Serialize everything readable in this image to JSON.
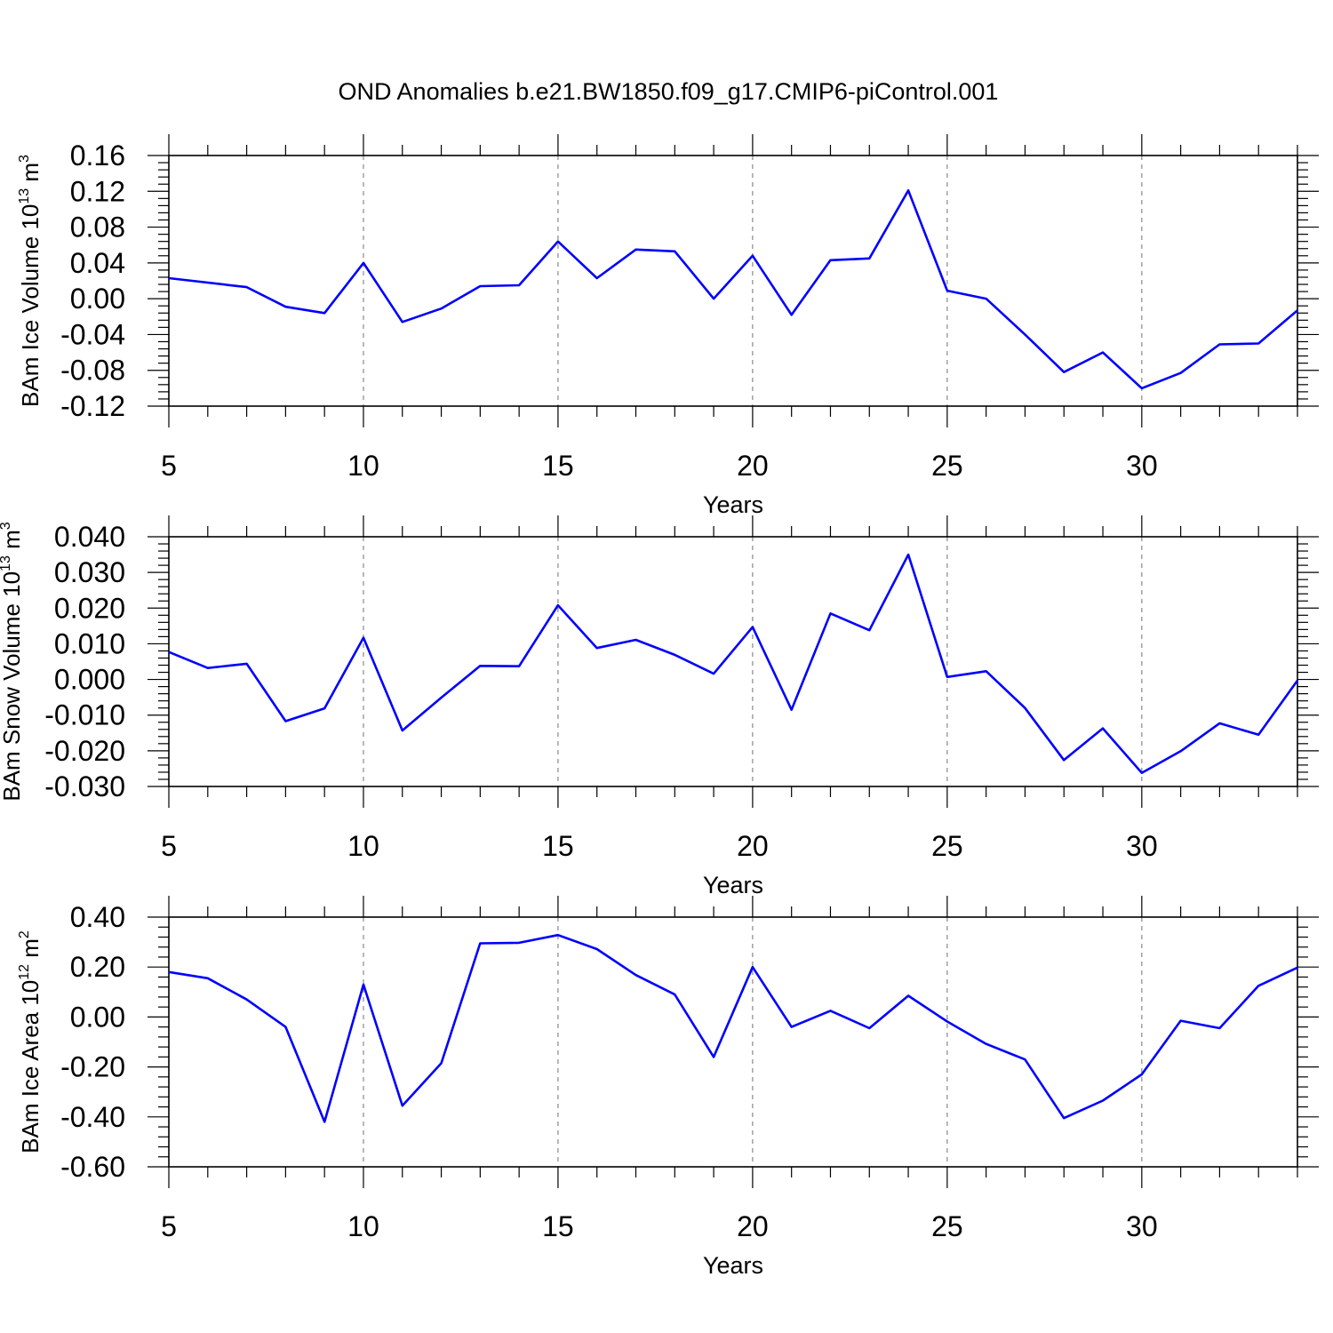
{
  "figure": {
    "title": "OND Anomalies b.e21.BW1850.f09_g17.CMIP6-piControl.001"
  },
  "chart_data": [
    {
      "type": "line",
      "title": "",
      "xlabel": "Years",
      "ylabel": "BAm Ice Volume 10",
      "ylabel_exp": "13",
      "ylabel_unit": " m",
      "ylabel_unit_exp": "3",
      "xlim": [
        5,
        34
      ],
      "ylim": [
        -0.12,
        0.16
      ],
      "yticks": [
        -0.12,
        -0.08,
        -0.04,
        0.0,
        0.04,
        0.08,
        0.12,
        0.16
      ],
      "ytick_labels": [
        "-0.12",
        "-0.08",
        "-0.04",
        "0.00",
        "0.04",
        "0.08",
        "0.12",
        "0.16"
      ],
      "xticks": [
        5,
        10,
        15,
        20,
        25,
        30
      ],
      "xtick_labels": [
        "5",
        "10",
        "15",
        "20",
        "25",
        "30"
      ],
      "grid": "vertical dashed at major x ticks",
      "line_color": "#0000ff",
      "x": [
        5,
        7,
        8,
        9,
        10,
        11,
        12,
        13,
        14,
        15,
        16,
        17,
        18,
        19,
        20,
        21,
        22,
        23,
        24,
        25,
        26,
        27,
        28,
        29,
        30,
        31,
        32,
        33,
        34
      ],
      "values": [
        0.023,
        0.013,
        -0.009,
        -0.016,
        0.04,
        -0.026,
        -0.011,
        0.014,
        0.015,
        0.064,
        0.023,
        0.055,
        0.053,
        0.0,
        0.048,
        -0.018,
        0.043,
        0.045,
        0.121,
        0.009,
        0.0,
        -0.04,
        -0.082,
        -0.06,
        -0.1,
        -0.083,
        -0.051,
        -0.05,
        -0.013
      ]
    },
    {
      "type": "line",
      "title": "",
      "xlabel": "Years",
      "ylabel": "BAm Snow Volume 10",
      "ylabel_exp": "13",
      "ylabel_unit": " m",
      "ylabel_unit_exp": "3",
      "xlim": [
        5,
        34
      ],
      "ylim": [
        -0.03,
        0.04
      ],
      "yticks": [
        -0.03,
        -0.02,
        -0.01,
        0.0,
        0.01,
        0.02,
        0.03,
        0.04
      ],
      "ytick_labels": [
        "-0.030",
        "-0.020",
        "-0.010",
        "0.000",
        "0.010",
        "0.020",
        "0.030",
        "0.040"
      ],
      "xticks": [
        5,
        10,
        15,
        20,
        25,
        30
      ],
      "xtick_labels": [
        "5",
        "10",
        "15",
        "20",
        "25",
        "30"
      ],
      "grid": "vertical dashed at major x ticks",
      "line_color": "#0000ff",
      "x": [
        5,
        6,
        7,
        8,
        9,
        10,
        11,
        12,
        13,
        14,
        15,
        16,
        17,
        18,
        19,
        20,
        21,
        22,
        23,
        24,
        25,
        26,
        27,
        28,
        29,
        30,
        31,
        32,
        33,
        34
      ],
      "values": [
        0.0077,
        0.0032,
        0.0044,
        -0.0117,
        -0.0081,
        0.0117,
        -0.0143,
        -0.0051,
        0.0038,
        0.0037,
        0.0208,
        0.0088,
        0.0111,
        0.0069,
        0.0016,
        0.0147,
        -0.0085,
        0.0185,
        0.0138,
        0.035,
        0.0007,
        0.0023,
        -0.008,
        -0.0226,
        -0.0137,
        -0.0262,
        -0.0201,
        -0.0123,
        -0.0155,
        -0.0003
      ]
    },
    {
      "type": "line",
      "title": "",
      "xlabel": "Years",
      "ylabel": "BAm Ice Area 10",
      "ylabel_exp": "12",
      "ylabel_unit": " m",
      "ylabel_unit_exp": "2",
      "xlim": [
        5,
        34
      ],
      "ylim": [
        -0.6,
        0.4
      ],
      "yticks": [
        -0.6,
        -0.4,
        -0.2,
        0.0,
        0.2,
        0.4
      ],
      "ytick_labels": [
        "-0.60",
        "-0.40",
        "-0.20",
        "0.00",
        "0.20",
        "0.40"
      ],
      "xticks": [
        5,
        10,
        15,
        20,
        25,
        30
      ],
      "xtick_labels": [
        "5",
        "10",
        "15",
        "20",
        "25",
        "30"
      ],
      "grid": "vertical dashed at major x ticks",
      "line_color": "#0000ff",
      "x": [
        5,
        6,
        7,
        8,
        9,
        10,
        11,
        12,
        13,
        14,
        15,
        16,
        17,
        18,
        19,
        20,
        21,
        22,
        23,
        24,
        25,
        26,
        27,
        28,
        29,
        30,
        31,
        32,
        33,
        34
      ],
      "values": [
        0.18,
        0.155,
        0.07,
        -0.04,
        -0.42,
        0.13,
        -0.355,
        -0.185,
        0.295,
        0.297,
        0.328,
        0.272,
        0.168,
        0.09,
        -0.16,
        0.2,
        -0.04,
        0.025,
        -0.045,
        0.085,
        -0.018,
        -0.108,
        -0.17,
        -0.405,
        -0.335,
        -0.23,
        -0.015,
        -0.045,
        0.125,
        0.198
      ]
    }
  ]
}
